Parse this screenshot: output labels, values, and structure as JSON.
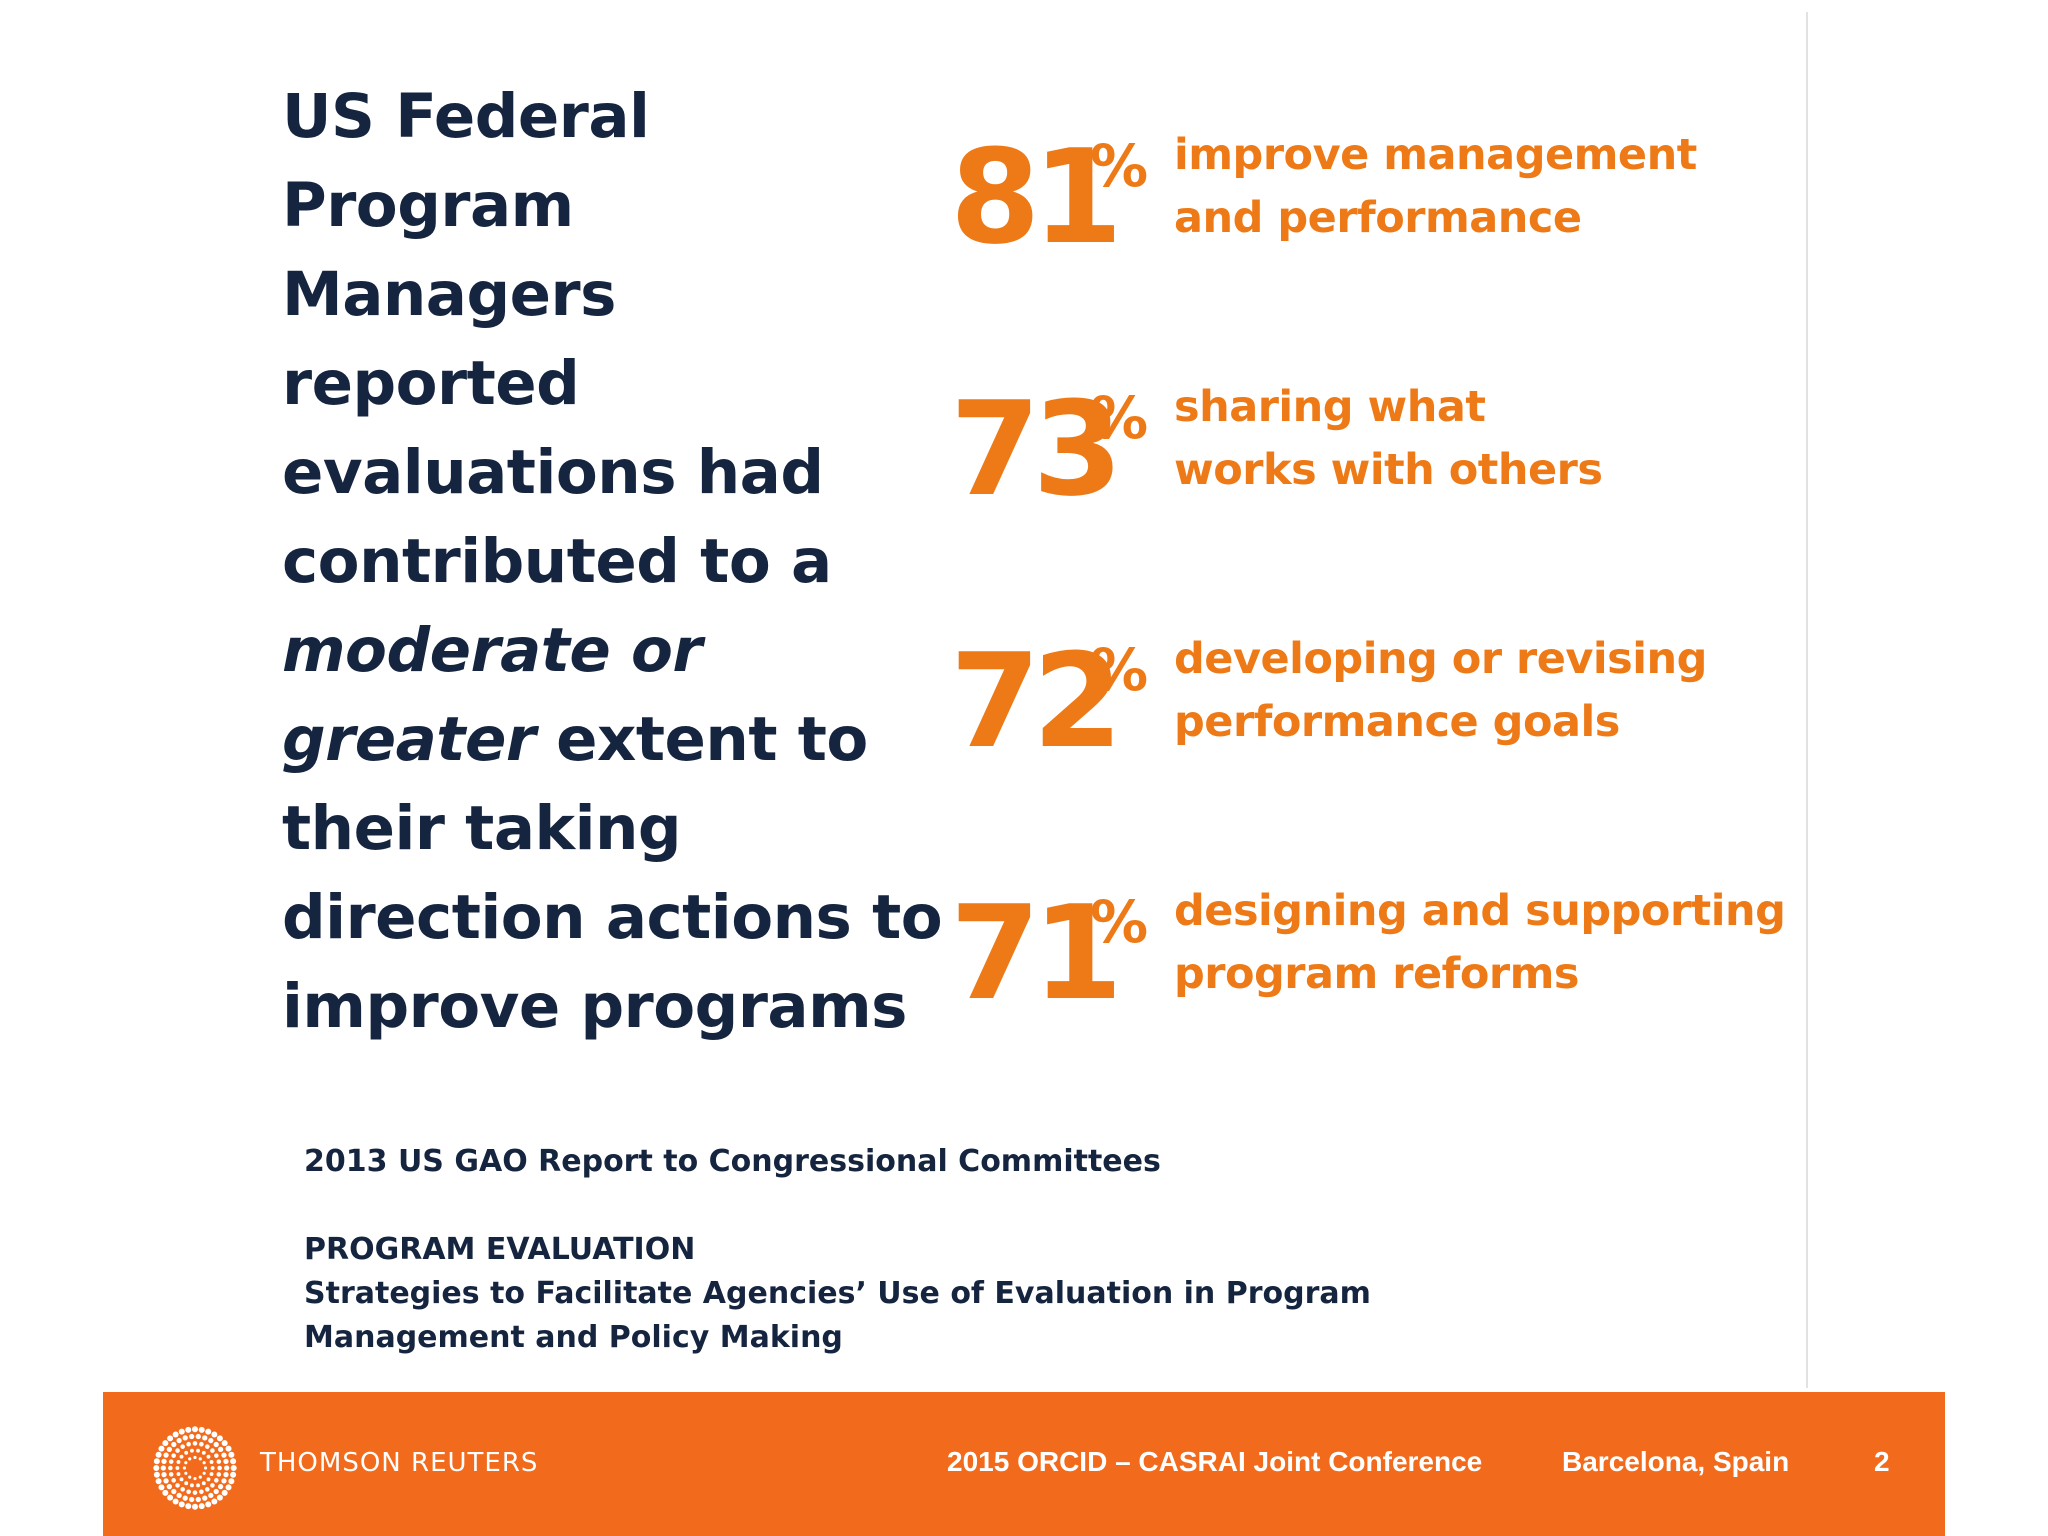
{
  "headline": {
    "line1": "US Federal",
    "line2": "Program",
    "line3": "Managers",
    "line4": "reported",
    "line5": "evaluations had",
    "line6": "contributed to a",
    "line7_em": "moderate or",
    "line8_em": "greater",
    "line8_rest": " extent to",
    "line9": "their taking",
    "line10": "direction actions to",
    "line11": "improve programs"
  },
  "stats": [
    {
      "value": "81",
      "unit": "%",
      "line1": "improve management",
      "line2": "and performance"
    },
    {
      "value": "73",
      "unit": "%",
      "line1": "sharing what",
      "line2": "works with others"
    },
    {
      "value": "72",
      "unit": "%",
      "line1": "developing or revising",
      "line2": "performance goals"
    },
    {
      "value": "71",
      "unit": "%",
      "line1": "designing and supporting",
      "line2": "program reforms"
    }
  ],
  "citation": {
    "source": "2013 US GAO Report to Congressional Committees",
    "title": "PROGRAM EVALUATION",
    "subtitle_line1": "Strategies to Facilitate Agencies’ Use of Evaluation in Program",
    "subtitle_line2": "Management and Policy Making"
  },
  "footer": {
    "logo_text": "THOMSON REUTERS",
    "conference": "2015 ORCID – CASRAI Joint Conference",
    "location": "Barcelona, Spain",
    "page": "2"
  },
  "colors": {
    "accent": "#ed7a16",
    "footer_bg": "#f26b1d",
    "text_dark": "#16253f"
  }
}
